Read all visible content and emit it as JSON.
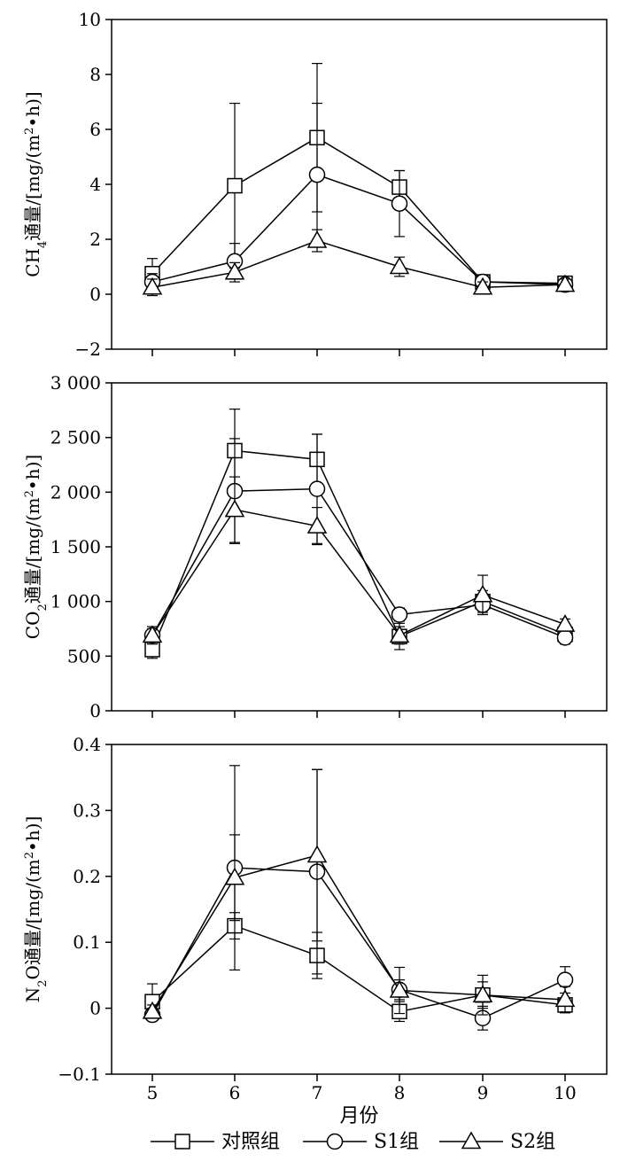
{
  "chart_data": [
    {
      "type": "line",
      "x": [
        "5",
        "6",
        "7",
        "8",
        "9",
        "10"
      ],
      "ylabel": "CH4通量/[mg/(m2•h)]",
      "ylabel_parts": [
        "CH",
        "4",
        "通量/[mg/(m",
        "2",
        "•h)]"
      ],
      "ylim": [
        -2,
        10
      ],
      "yticks": [
        -2,
        0,
        2,
        4,
        6,
        8,
        10
      ],
      "ytick_labels": [
        "−2",
        "0",
        "2",
        "4",
        "6",
        "8",
        "10"
      ],
      "series": [
        {
          "name": "对照组",
          "marker": "square",
          "values": [
            0.75,
            3.95,
            5.7,
            3.9,
            0.45,
            0.4
          ],
          "errors": [
            0.55,
            3.0,
            2.7,
            0.6,
            0.2,
            0.15
          ]
        },
        {
          "name": "S1组",
          "marker": "circle",
          "values": [
            0.45,
            1.2,
            4.35,
            3.3,
            0.45,
            0.35
          ],
          "errors": [
            0.3,
            0.65,
            2.6,
            1.2,
            0.25,
            0.15
          ]
        },
        {
          "name": "S2组",
          "marker": "triangle",
          "values": [
            0.25,
            0.8,
            1.95,
            1.0,
            0.25,
            0.35
          ],
          "errors": [
            0.3,
            0.35,
            0.4,
            0.35,
            0.2,
            0.2
          ]
        }
      ]
    },
    {
      "type": "line",
      "x": [
        "5",
        "6",
        "7",
        "8",
        "9",
        "10"
      ],
      "ylabel": "CO2通量/[mg/(m2•h)]",
      "ylabel_parts": [
        "CO",
        "2",
        "通量/[mg/(m",
        "2",
        "•h)]"
      ],
      "ylim": [
        0,
        3000
      ],
      "yticks": [
        0,
        500,
        1000,
        1500,
        2000,
        2500,
        3000
      ],
      "ytick_labels": [
        "0",
        "500",
        "1 000",
        "1 500",
        "2 000",
        "2 500",
        "3 000"
      ],
      "series": [
        {
          "name": "对照组",
          "marker": "square",
          "values": [
            560,
            2380,
            2300,
            680,
            1000,
            700
          ],
          "errors": [
            80,
            380,
            230,
            120,
            100,
            60
          ]
        },
        {
          "name": "S1组",
          "marker": "circle",
          "values": [
            690,
            2010,
            2030,
            880,
            970,
            670
          ],
          "errors": [
            60,
            480,
            500,
            60,
            90,
            60
          ]
        },
        {
          "name": "S2组",
          "marker": "triangle",
          "values": [
            690,
            1840,
            1690,
            690,
            1060,
            790
          ],
          "errors": [
            80,
            300,
            170,
            80,
            180,
            50
          ]
        }
      ]
    },
    {
      "type": "line",
      "x": [
        "5",
        "6",
        "7",
        "8",
        "9",
        "10"
      ],
      "xlabel": "月份",
      "ylabel": "N2O通量/[mg/(m2•h)]",
      "ylabel_parts": [
        "N",
        "2",
        "O通量/[mg/(m",
        "2",
        "•h)]"
      ],
      "ylim": [
        -0.1,
        0.4
      ],
      "yticks": [
        -0.1,
        0,
        0.1,
        0.2,
        0.3,
        0.4
      ],
      "ytick_labels": [
        "−0.1",
        "0",
        "0.1",
        "0.2",
        "0.3",
        "0.4"
      ],
      "series": [
        {
          "name": "对照组",
          "marker": "square",
          "values": [
            0.01,
            0.125,
            0.08,
            -0.005,
            0.02,
            0.005
          ],
          "errors": [
            0.027,
            0.02,
            0.035,
            0.015,
            0.02,
            0.01
          ]
        },
        {
          "name": "S1组",
          "marker": "circle",
          "values": [
            -0.01,
            0.213,
            0.207,
            0.028,
            -0.015,
            0.043
          ],
          "errors": [
            0.005,
            0.155,
            0.155,
            0.015,
            0.018,
            0.02
          ]
        },
        {
          "name": "S2组",
          "marker": "triangle",
          "values": [
            -0.005,
            0.198,
            0.232,
            0.027,
            0.02,
            0.013
          ],
          "errors": [
            0.01,
            0.065,
            0.13,
            0.035,
            0.03,
            0.02
          ]
        }
      ]
    }
  ],
  "legend": {
    "items": [
      {
        "label": "对照组",
        "marker": "square"
      },
      {
        "label": "S1组",
        "marker": "circle"
      },
      {
        "label": "S2组",
        "marker": "triangle"
      }
    ]
  }
}
